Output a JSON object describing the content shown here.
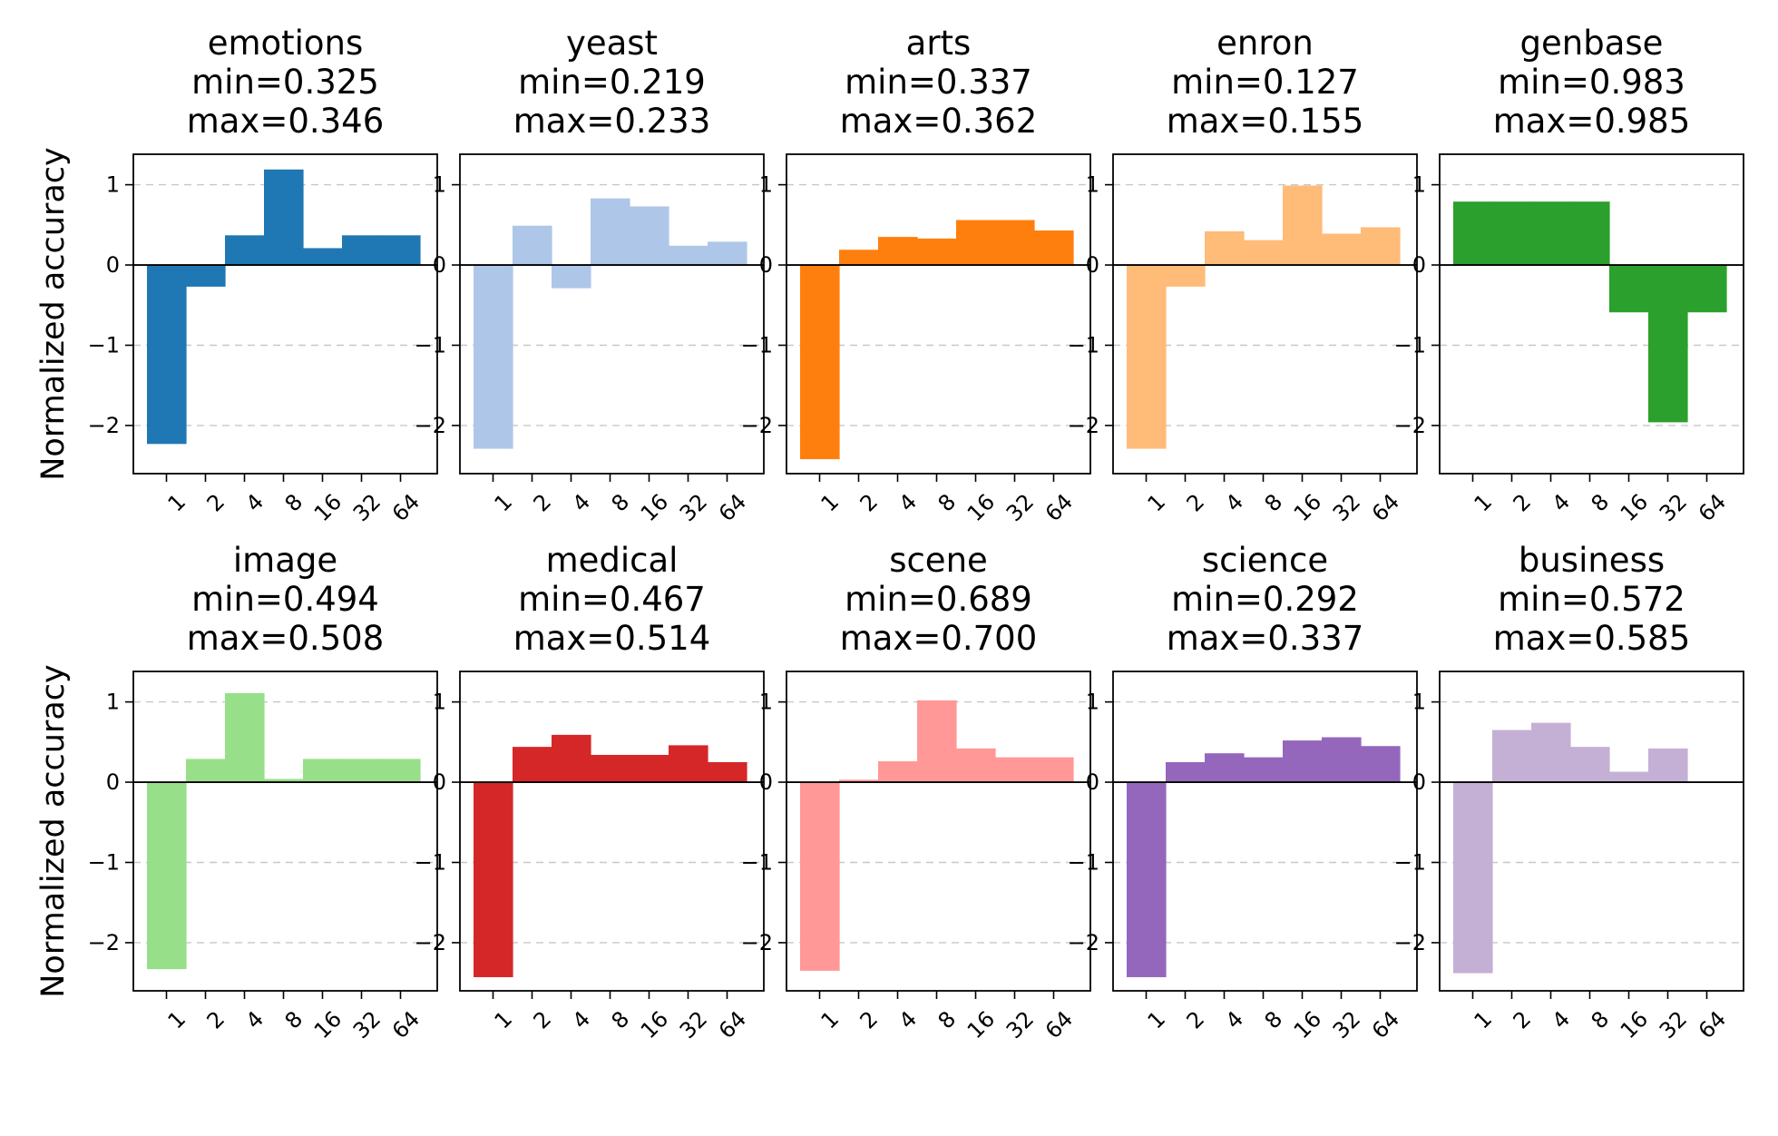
{
  "figure": {
    "ylabel": "Normalized accuracy"
  },
  "chart_data": [
    {
      "type": "bar",
      "name": "emotions",
      "title_line1": "emotions",
      "title_line2": "min=0.325",
      "title_line3": "max=0.346",
      "color": "#1f77b4",
      "categories": [
        "1",
        "2",
        "4",
        "8",
        "16",
        "32",
        "64"
      ],
      "values": [
        -2.23,
        -0.27,
        0.37,
        1.19,
        0.21,
        0.37,
        0.37
      ],
      "yticks": [
        1,
        0,
        -1,
        -2
      ],
      "ytick_labels": [
        "1",
        "0",
        "−1",
        "−2"
      ],
      "ylim": [
        -2.6,
        1.38
      ],
      "ylabel": "Normalized accuracy"
    },
    {
      "type": "bar",
      "name": "yeast",
      "title_line1": "yeast",
      "title_line2": "min=0.219",
      "title_line3": "max=0.233",
      "color": "#aec7e8",
      "categories": [
        "1",
        "2",
        "4",
        "8",
        "16",
        "32",
        "64"
      ],
      "values": [
        -2.29,
        0.49,
        -0.29,
        0.83,
        0.73,
        0.24,
        0.29
      ],
      "yticks": [
        1,
        0,
        -1,
        -2
      ],
      "ytick_labels": [
        "1",
        "0",
        "−1",
        "−2"
      ],
      "ylim": [
        -2.6,
        1.38
      ]
    },
    {
      "type": "bar",
      "name": "arts",
      "title_line1": "arts",
      "title_line2": "min=0.337",
      "title_line3": "max=0.362",
      "color": "#ff7f0e",
      "categories": [
        "1",
        "2",
        "4",
        "8",
        "16",
        "32",
        "64"
      ],
      "values": [
        -2.42,
        0.19,
        0.35,
        0.33,
        0.56,
        0.56,
        0.43
      ],
      "yticks": [
        1,
        0,
        -1,
        -2
      ],
      "ytick_labels": [
        "1",
        "0",
        "−1",
        "−2"
      ],
      "ylim": [
        -2.6,
        1.38
      ]
    },
    {
      "type": "bar",
      "name": "enron",
      "title_line1": "enron",
      "title_line2": "min=0.127",
      "title_line3": "max=0.155",
      "color": "#ffbb78",
      "categories": [
        "1",
        "2",
        "4",
        "8",
        "16",
        "32",
        "64"
      ],
      "values": [
        -2.29,
        -0.27,
        0.42,
        0.31,
        0.99,
        0.39,
        0.47
      ],
      "yticks": [
        1,
        0,
        -1,
        -2
      ],
      "ytick_labels": [
        "1",
        "0",
        "−1",
        "−2"
      ],
      "ylim": [
        -2.6,
        1.38
      ]
    },
    {
      "type": "bar",
      "name": "genbase",
      "title_line1": "genbase",
      "title_line2": "min=0.983",
      "title_line3": "max=0.985",
      "color": "#2ca02c",
      "categories": [
        "1",
        "2",
        "4",
        "8",
        "16",
        "32",
        "64"
      ],
      "values": [
        0.79,
        0.79,
        0.79,
        0.79,
        -0.59,
        -1.96,
        -0.59
      ],
      "yticks": [
        1,
        0,
        -1,
        -2
      ],
      "ytick_labels": [
        "1",
        "0",
        "−1",
        "−2"
      ],
      "ylim": [
        -2.6,
        1.38
      ]
    },
    {
      "type": "bar",
      "name": "image",
      "title_line1": "image",
      "title_line2": "min=0.494",
      "title_line3": "max=0.508",
      "color": "#98df8a",
      "categories": [
        "1",
        "2",
        "4",
        "8",
        "16",
        "32",
        "64"
      ],
      "values": [
        -2.33,
        0.29,
        1.11,
        0.04,
        0.29,
        0.29,
        0.29
      ],
      "yticks": [
        1,
        0,
        -1,
        -2
      ],
      "ytick_labels": [
        "1",
        "0",
        "−1",
        "−2"
      ],
      "ylim": [
        -2.6,
        1.38
      ],
      "ylabel": "Normalized accuracy"
    },
    {
      "type": "bar",
      "name": "medical",
      "title_line1": "medical",
      "title_line2": "min=0.467",
      "title_line3": "max=0.514",
      "color": "#d62728",
      "categories": [
        "1",
        "2",
        "4",
        "8",
        "16",
        "32",
        "64"
      ],
      "values": [
        -2.43,
        0.44,
        0.59,
        0.34,
        0.34,
        0.46,
        0.25
      ],
      "yticks": [
        1,
        0,
        -1,
        -2
      ],
      "ytick_labels": [
        "1",
        "0",
        "−1",
        "−2"
      ],
      "ylim": [
        -2.6,
        1.38
      ]
    },
    {
      "type": "bar",
      "name": "scene",
      "title_line1": "scene",
      "title_line2": "min=0.689",
      "title_line3": "max=0.700",
      "color": "#ff9896",
      "categories": [
        "1",
        "2",
        "4",
        "8",
        "16",
        "32",
        "64"
      ],
      "values": [
        -2.35,
        0.03,
        0.26,
        1.02,
        0.42,
        0.31,
        0.31
      ],
      "yticks": [
        1,
        0,
        -1,
        -2
      ],
      "ytick_labels": [
        "1",
        "0",
        "−1",
        "−2"
      ],
      "ylim": [
        -2.6,
        1.38
      ]
    },
    {
      "type": "bar",
      "name": "science",
      "title_line1": "science",
      "title_line2": "min=0.292",
      "title_line3": "max=0.337",
      "color": "#9467bd",
      "categories": [
        "1",
        "2",
        "4",
        "8",
        "16",
        "32",
        "64"
      ],
      "values": [
        -2.43,
        0.25,
        0.36,
        0.31,
        0.52,
        0.56,
        0.45
      ],
      "yticks": [
        1,
        0,
        -1,
        -2
      ],
      "ytick_labels": [
        "1",
        "0",
        "−1",
        "−2"
      ],
      "ylim": [
        -2.6,
        1.38
      ]
    },
    {
      "type": "bar",
      "name": "business",
      "title_line1": "business",
      "title_line2": "min=0.572",
      "title_line3": "max=0.585",
      "color": "#c5b0d5",
      "categories": [
        "1",
        "2",
        "4",
        "8",
        "16",
        "32",
        "64"
      ],
      "values": [
        -2.38,
        0.65,
        0.74,
        0.44,
        0.13,
        0.42,
        0
      ],
      "yticks": [
        1,
        0,
        -1,
        -2
      ],
      "ytick_labels": [
        "1",
        "0",
        "−1",
        "−2"
      ],
      "ylim": [
        -2.6,
        1.38
      ]
    }
  ]
}
